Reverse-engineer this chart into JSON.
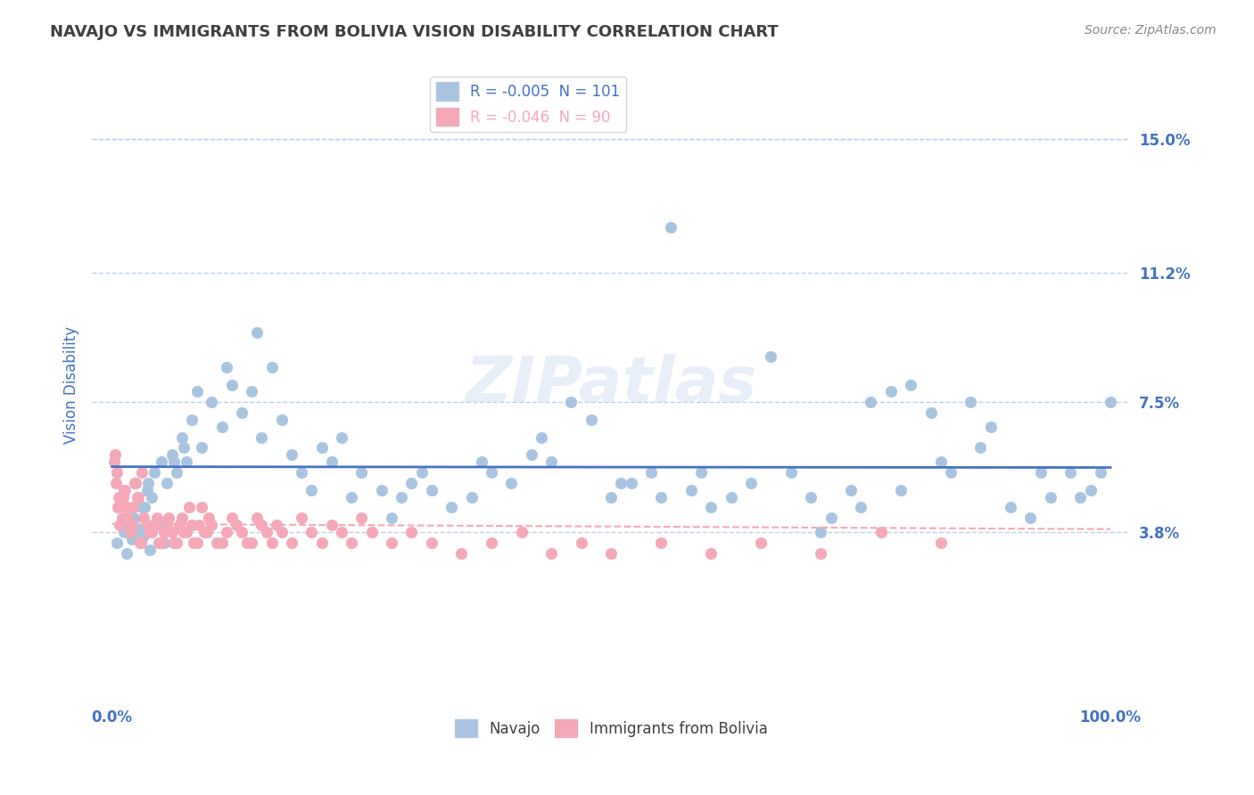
{
  "title": "NAVAJO VS IMMIGRANTS FROM BOLIVIA VISION DISABILITY CORRELATION CHART",
  "source_text": "Source: ZipAtlas.com",
  "xlabel": "",
  "ylabel": "Vision Disability",
  "xlim": [
    0.0,
    100.0
  ],
  "ylim": [
    -1.0,
    17.0
  ],
  "yticks": [
    3.8,
    7.5,
    11.2,
    15.0
  ],
  "ytick_labels": [
    "3.8%",
    "7.5%",
    "11.2%",
    "15.0%"
  ],
  "xticks": [
    0.0,
    10.0,
    20.0,
    30.0,
    40.0,
    50.0,
    60.0,
    70.0,
    80.0,
    90.0,
    100.0
  ],
  "xtick_labels": [
    "0.0%",
    "",
    "",
    "",
    "",
    "",
    "",
    "",
    "",
    "",
    "100.0%"
  ],
  "navajo_R": -0.005,
  "navajo_N": 101,
  "bolivia_R": -0.046,
  "bolivia_N": 90,
  "navajo_color": "#a8c4e0",
  "bolivia_color": "#f4a8b8",
  "navajo_line_color": "#4472c4",
  "bolivia_line_color": "#f4a8b8",
  "title_color": "#404040",
  "axis_label_color": "#4472c4",
  "tick_label_color": "#4472c4",
  "grid_color": "#c0d0e8",
  "background_color": "#ffffff",
  "watermark_text": "ZIPatlas",
  "watermark_color": "#d0dff0",
  "navajo_x": [
    0.5,
    1.0,
    1.2,
    1.5,
    2.0,
    2.2,
    2.5,
    3.0,
    3.2,
    3.5,
    3.8,
    4.0,
    4.2,
    4.5,
    5.0,
    5.5,
    6.0,
    6.5,
    7.0,
    7.5,
    8.0,
    9.0,
    10.0,
    11.0,
    12.0,
    13.0,
    14.0,
    15.0,
    16.0,
    17.0,
    18.0,
    19.0,
    20.0,
    21.0,
    22.0,
    23.0,
    25.0,
    27.0,
    29.0,
    30.0,
    32.0,
    34.0,
    36.0,
    38.0,
    40.0,
    42.0,
    44.0,
    46.0,
    48.0,
    50.0,
    52.0,
    54.0,
    56.0,
    58.0,
    60.0,
    62.0,
    64.0,
    66.0,
    68.0,
    70.0,
    72.0,
    74.0,
    76.0,
    78.0,
    80.0,
    82.0,
    84.0,
    86.0,
    88.0,
    90.0,
    92.0,
    94.0,
    96.0,
    98.0,
    100.0,
    2.8,
    3.3,
    3.6,
    4.8,
    5.2,
    6.2,
    7.2,
    8.5,
    11.5,
    14.5,
    24.0,
    28.0,
    31.0,
    37.0,
    43.0,
    51.0,
    55.0,
    59.0,
    71.0,
    75.0,
    79.0,
    83.0,
    87.0,
    93.0,
    97.0,
    99.0
  ],
  "navajo_y": [
    3.5,
    4.0,
    3.8,
    3.2,
    3.6,
    4.2,
    3.9,
    4.5,
    3.7,
    5.0,
    3.3,
    4.8,
    5.5,
    4.0,
    5.8,
    5.2,
    6.0,
    5.5,
    6.5,
    5.8,
    7.0,
    6.2,
    7.5,
    6.8,
    8.0,
    7.2,
    7.8,
    6.5,
    8.5,
    7.0,
    6.0,
    5.5,
    5.0,
    6.2,
    5.8,
    6.5,
    5.5,
    5.0,
    4.8,
    5.2,
    5.0,
    4.5,
    4.8,
    5.5,
    5.2,
    6.0,
    5.8,
    7.5,
    7.0,
    4.8,
    5.2,
    5.5,
    12.5,
    5.0,
    4.5,
    4.8,
    5.2,
    8.8,
    5.5,
    4.8,
    4.2,
    5.0,
    7.5,
    7.8,
    8.0,
    7.2,
    5.5,
    7.5,
    6.8,
    4.5,
    4.2,
    4.8,
    5.5,
    5.0,
    7.5,
    3.8,
    4.5,
    5.2,
    4.0,
    3.5,
    5.8,
    6.2,
    7.8,
    8.5,
    9.5,
    4.8,
    4.2,
    5.5,
    5.8,
    6.5,
    5.2,
    4.8,
    5.5,
    3.8,
    4.5,
    5.0,
    5.8,
    6.2,
    5.5,
    4.8,
    5.5
  ],
  "bolivia_x": [
    0.3,
    0.5,
    0.7,
    1.0,
    1.2,
    1.5,
    1.8,
    2.0,
    2.3,
    2.5,
    2.8,
    3.0,
    3.5,
    4.0,
    4.5,
    5.0,
    5.5,
    6.0,
    6.5,
    7.0,
    7.5,
    8.0,
    8.5,
    9.0,
    9.5,
    10.0,
    11.0,
    12.0,
    13.0,
    14.0,
    15.0,
    0.2,
    0.4,
    0.6,
    0.8,
    1.1,
    1.3,
    1.6,
    1.9,
    2.1,
    2.4,
    2.6,
    2.9,
    3.2,
    3.7,
    4.2,
    4.7,
    5.2,
    5.7,
    6.2,
    6.7,
    7.2,
    7.7,
    8.2,
    8.7,
    9.2,
    9.7,
    10.5,
    11.5,
    12.5,
    13.5,
    14.5,
    15.5,
    16.0,
    16.5,
    17.0,
    18.0,
    19.0,
    20.0,
    21.0,
    22.0,
    23.0,
    24.0,
    25.0,
    26.0,
    28.0,
    30.0,
    32.0,
    35.0,
    38.0,
    41.0,
    44.0,
    47.0,
    50.0,
    55.0,
    60.0,
    65.0,
    71.0,
    77.0,
    83.0
  ],
  "bolivia_y": [
    6.0,
    5.5,
    4.8,
    4.2,
    5.0,
    4.5,
    3.8,
    4.0,
    5.2,
    4.8,
    3.5,
    5.5,
    4.0,
    3.8,
    4.2,
    3.5,
    4.0,
    3.8,
    3.5,
    4.2,
    3.8,
    4.0,
    3.5,
    4.5,
    3.8,
    4.0,
    3.5,
    4.2,
    3.8,
    3.5,
    4.0,
    5.8,
    5.2,
    4.5,
    4.0,
    4.8,
    5.0,
    4.2,
    3.8,
    4.5,
    5.2,
    4.8,
    3.5,
    4.2,
    3.8,
    4.0,
    3.5,
    3.8,
    4.2,
    3.5,
    4.0,
    3.8,
    4.5,
    3.5,
    4.0,
    3.8,
    4.2,
    3.5,
    3.8,
    4.0,
    3.5,
    4.2,
    3.8,
    3.5,
    4.0,
    3.8,
    3.5,
    4.2,
    3.8,
    3.5,
    4.0,
    3.8,
    3.5,
    4.2,
    3.8,
    3.5,
    3.8,
    3.5,
    3.2,
    3.5,
    3.8,
    3.2,
    3.5,
    3.2,
    3.5,
    3.2,
    3.5,
    3.2,
    3.8,
    3.5
  ]
}
